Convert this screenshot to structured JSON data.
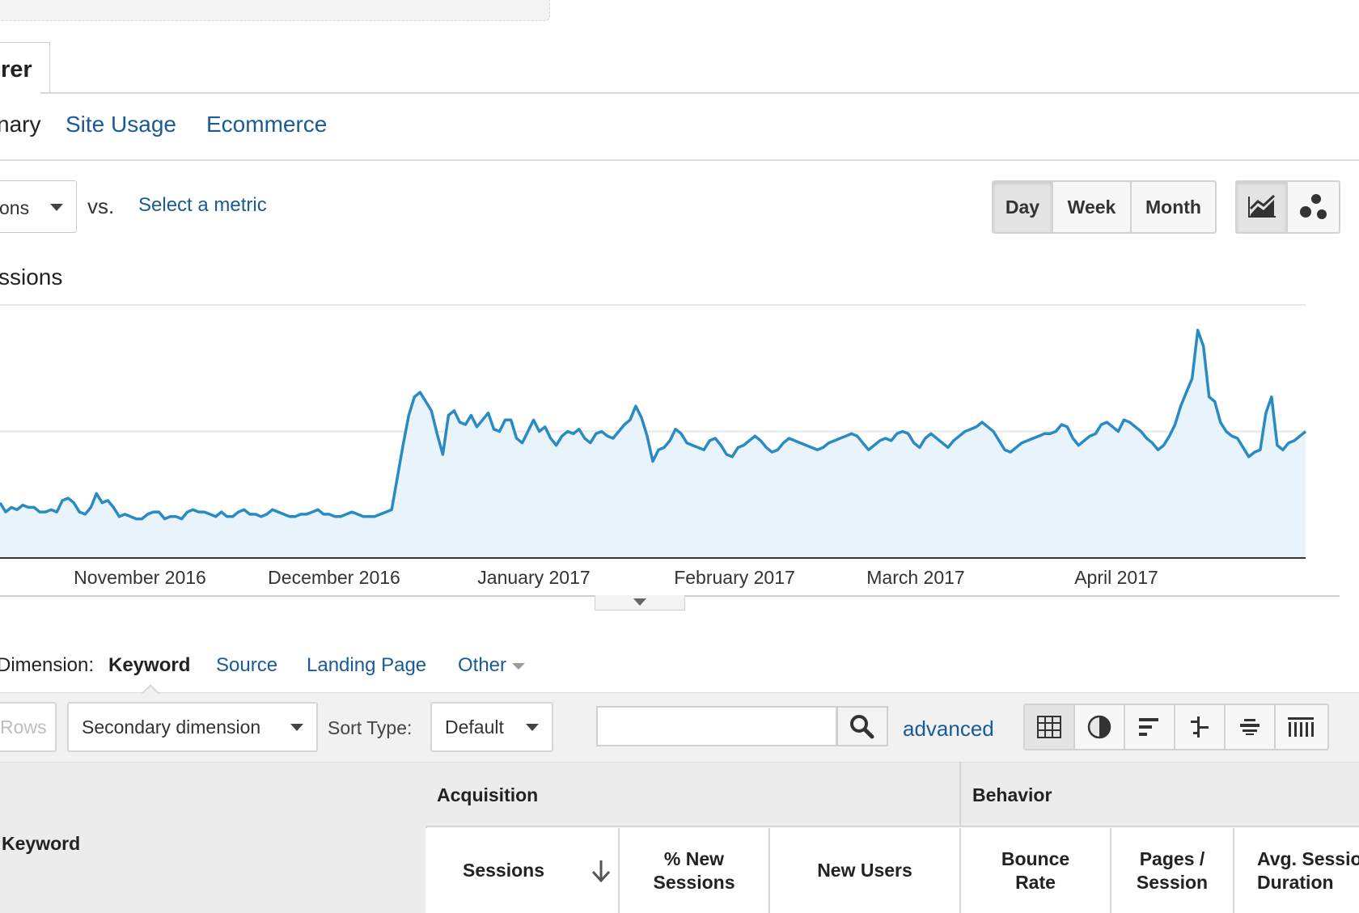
{
  "tab": {
    "label": "rer"
  },
  "subtabs": [
    "nary",
    "Site Usage",
    "Ecommerce"
  ],
  "metric": {
    "selected": "ons",
    "vs": "vs.",
    "select_metric": "Select a metric"
  },
  "granularity": [
    "Day",
    "Week",
    "Month"
  ],
  "granularity_selected": "Day",
  "chart_type_icons": [
    "line-chart-icon",
    "motion-chart-icon"
  ],
  "chart_data": {
    "type": "area",
    "title": "ssions",
    "x_tick_labels": [
      "November 2016",
      "December 2016",
      "January 2017",
      "February 2017",
      "March 2017",
      "April 2017"
    ],
    "y_gridlines": 3,
    "series_color": "#2a8bc4",
    "fill_color": "#e8f3fb",
    "values": [
      24,
      20,
      22,
      21,
      23,
      22,
      22,
      20,
      20,
      21,
      20,
      25,
      26,
      24,
      20,
      19,
      22,
      28,
      24,
      25,
      22,
      18,
      19,
      18,
      17,
      17,
      19,
      20,
      20,
      17,
      18,
      18,
      17,
      20,
      21,
      20,
      20,
      19,
      18,
      20,
      18,
      18,
      20,
      21,
      19,
      19,
      18,
      19,
      21,
      20,
      19,
      18,
      18,
      19,
      19,
      20,
      21,
      19,
      19,
      18,
      18,
      19,
      20,
      19,
      18,
      18,
      18,
      19,
      20,
      21,
      35,
      49,
      62,
      70,
      72,
      68,
      64,
      54,
      45,
      62,
      64,
      59,
      58,
      62,
      57,
      60,
      63,
      56,
      55,
      60,
      60,
      52,
      50,
      55,
      60,
      55,
      57,
      52,
      49,
      53,
      55,
      54,
      56,
      52,
      50,
      54,
      55,
      53,
      52,
      55,
      58,
      60,
      66,
      61,
      53,
      42,
      47,
      48,
      51,
      56,
      54,
      50,
      49,
      48,
      47,
      51,
      52,
      49,
      45,
      44,
      48,
      49,
      51,
      53,
      51,
      48,
      46,
      47,
      50,
      52,
      51,
      50,
      49,
      48,
      47,
      48,
      50,
      51,
      52,
      53,
      54,
      53,
      50,
      47,
      49,
      51,
      52,
      51,
      54,
      55,
      54,
      50,
      48,
      52,
      54,
      52,
      50,
      48,
      51,
      53,
      55,
      56,
      57,
      59,
      57,
      55,
      51,
      47,
      46,
      48,
      50,
      51,
      52,
      53,
      54,
      54,
      55,
      58,
      57,
      52,
      49,
      51,
      53,
      54,
      58,
      59,
      57,
      55,
      60,
      59,
      57,
      55,
      52,
      50,
      47,
      49,
      53,
      58,
      66,
      72,
      78,
      99,
      92,
      70,
      68,
      59,
      55,
      53,
      52,
      48,
      44,
      46,
      47,
      63,
      70,
      49,
      47,
      50,
      51,
      53,
      55
    ],
    "ylim": [
      0,
      110
    ]
  },
  "primary_dimension": {
    "label": "Dimension:",
    "active": "Keyword",
    "options": [
      "Source",
      "Landing Page",
      "Other"
    ]
  },
  "toolbar": {
    "rows": "Rows",
    "secondary_dimension": "Secondary dimension",
    "sort_type_label": "Sort Type:",
    "sort_type_value": "Default",
    "search_value": "",
    "advanced": "advanced",
    "view_icons": [
      "table-view-icon",
      "pie-view-icon",
      "performance-view-icon",
      "comparison-view-icon",
      "term-cloud-view-icon",
      "pivot-view-icon"
    ]
  },
  "table": {
    "first_col": "Keyword",
    "groups": [
      "Acquisition",
      "Behavior"
    ],
    "columns": [
      "Sessions",
      "% New Sessions",
      "New Users",
      "Bounce Rate",
      "Pages / Session",
      "Avg. Session Duration"
    ]
  }
}
